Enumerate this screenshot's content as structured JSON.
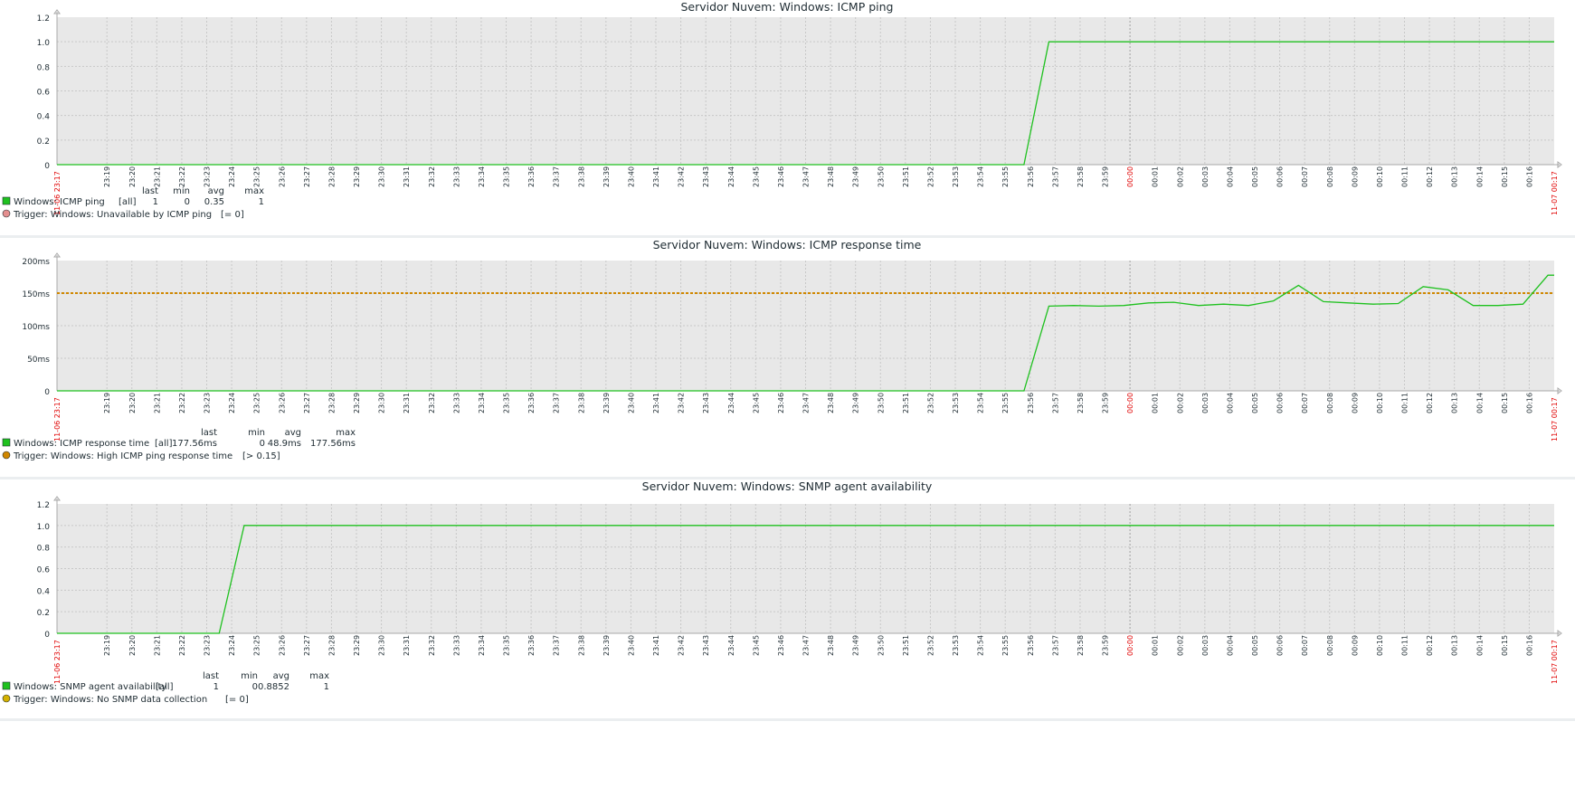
{
  "colors": {
    "series": "#1fc11f",
    "trigger_ping": "#e48f8f",
    "trigger_response": "#d08700",
    "trigger_snmp": "#d4b100",
    "plot_bg": "#e8e8e8",
    "grid": "#c8c8c8",
    "axis_label_red": "#e00000"
  },
  "time_ticks": [
    "23:19",
    "23:20",
    "23:21",
    "23:22",
    "23:23",
    "23:24",
    "23:25",
    "23:26",
    "23:27",
    "23:28",
    "23:29",
    "23:30",
    "23:31",
    "23:32",
    "23:33",
    "23:34",
    "23:35",
    "23:36",
    "23:37",
    "23:38",
    "23:39",
    "23:40",
    "23:41",
    "23:42",
    "23:43",
    "23:44",
    "23:45",
    "23:46",
    "23:47",
    "23:48",
    "23:49",
    "23:50",
    "23:51",
    "23:52",
    "23:53",
    "23:54",
    "23:55",
    "23:56",
    "23:57",
    "23:58",
    "23:59",
    "00:00",
    "00:01",
    "00:02",
    "00:03",
    "00:04",
    "00:05",
    "00:06",
    "00:07",
    "00:08",
    "00:09",
    "00:10",
    "00:11",
    "00:12",
    "00:13",
    "00:14",
    "00:15",
    "00:16"
  ],
  "time_start_label": "11-06 23:17",
  "time_end_label": "11-07 00:17",
  "chart_data": [
    {
      "type": "line",
      "title": "Servidor Nuvem: Windows: ICMP ping",
      "y_ticks": [
        "0",
        "0.2",
        "0.4",
        "0.6",
        "0.8",
        "1.0",
        "1.2"
      ],
      "ylim": [
        0,
        1.2
      ],
      "xlim": [
        "23:17",
        "00:17"
      ],
      "grid": true,
      "series": [
        {
          "name": "Windows: ICMP ping",
          "x": [
            "23:17",
            "23:55:45",
            "23:56:45",
            "00:17"
          ],
          "values": [
            0,
            0,
            1,
            1
          ]
        }
      ],
      "trigger": {
        "label": "Trigger: Windows: Unavailable by ICMP ping",
        "condition": "[= 0]",
        "value": 0
      },
      "legend": {
        "headers": [
          "last",
          "min",
          "avg",
          "max"
        ],
        "item_label": "Windows: ICMP ping",
        "scope": "[all]",
        "last": "1",
        "min": "0",
        "avg": "0.35",
        "max": "1"
      }
    },
    {
      "type": "line",
      "title": "Servidor Nuvem: Windows: ICMP response time",
      "y_ticks": [
        "0",
        "50ms",
        "100ms",
        "150ms",
        "200ms"
      ],
      "ylim": [
        0,
        200
      ],
      "xlim": [
        "23:17",
        "00:17"
      ],
      "grid": true,
      "series": [
        {
          "name": "Windows: ICMP response time",
          "x": [
            "23:17",
            "23:55:45",
            "23:56:45",
            "23:57:45",
            "23:58:45",
            "23:59:45",
            "00:00:45",
            "00:01:45",
            "00:02:45",
            "00:03:45",
            "00:04:45",
            "00:05:45",
            "00:06:45",
            "00:07:45",
            "00:08:45",
            "00:09:45",
            "00:10:45",
            "00:11:45",
            "00:12:45",
            "00:13:45",
            "00:14:45",
            "00:15:45",
            "00:16:45",
            "00:17"
          ],
          "values": [
            0,
            0,
            130,
            131,
            130,
            131,
            135,
            136,
            131,
            133,
            131,
            138,
            162,
            137,
            135,
            133,
            134,
            160,
            155,
            131,
            131,
            133,
            177.56,
            177.56
          ]
        }
      ],
      "trigger": {
        "label": "Trigger: Windows: High ICMP ping response time",
        "condition": "[> 0.15]",
        "value": 150
      },
      "legend": {
        "headers": [
          "last",
          "min",
          "avg",
          "max"
        ],
        "item_label": "Windows: ICMP response time",
        "scope": "[all]",
        "last": "177.56ms",
        "min": "0",
        "avg": "48.9ms",
        "max": "177.56ms"
      }
    },
    {
      "type": "line",
      "title": "Servidor Nuvem: Windows: SNMP agent availability",
      "y_ticks": [
        "0",
        "0.2",
        "0.4",
        "0.6",
        "0.8",
        "1.0",
        "1.2"
      ],
      "ylim": [
        0,
        1.2
      ],
      "xlim": [
        "23:17",
        "00:17"
      ],
      "grid": true,
      "series": [
        {
          "name": "Windows: SNMP agent availability",
          "x": [
            "23:17",
            "23:23:30",
            "23:24:30",
            "00:17"
          ],
          "values": [
            0,
            0,
            1,
            1
          ]
        }
      ],
      "trigger": {
        "label": "Trigger: Windows: No SNMP data collection",
        "condition": "[= 0]",
        "value": 0
      },
      "legend": {
        "headers": [
          "last",
          "min",
          "avg",
          "max"
        ],
        "item_label": "Windows: SNMP agent availability",
        "scope": "[all]",
        "last": "1",
        "min": "0",
        "avg": "0.8852",
        "max": "1"
      }
    }
  ]
}
